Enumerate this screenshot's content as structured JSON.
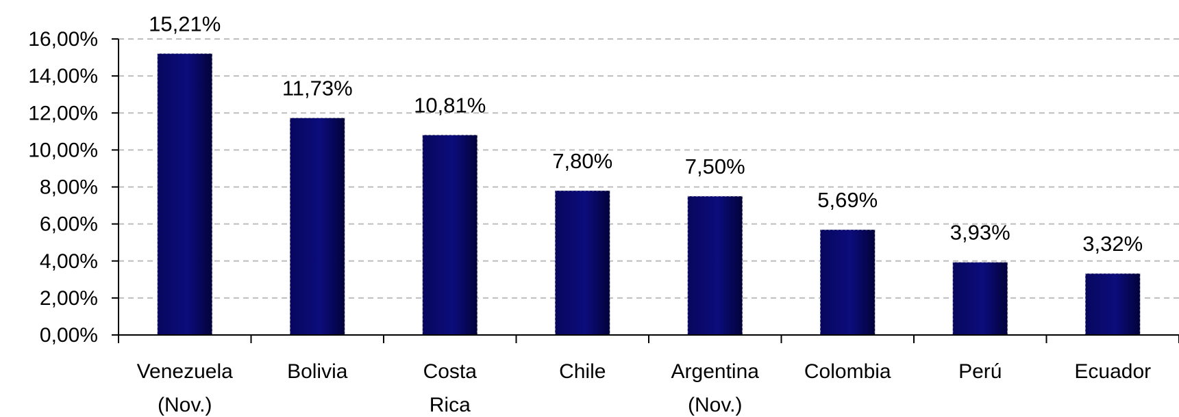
{
  "chart_data": {
    "type": "bar",
    "categories": [
      [
        "Venezuela",
        "(Nov.)"
      ],
      [
        "Bolivia"
      ],
      [
        "Costa",
        "Rica"
      ],
      [
        "Chile"
      ],
      [
        "Argentina",
        "(Nov.)"
      ],
      [
        "Colombia"
      ],
      [
        "Perú"
      ],
      [
        "Ecuador"
      ]
    ],
    "values": [
      15.21,
      11.73,
      10.81,
      7.8,
      7.5,
      5.69,
      3.93,
      3.32
    ],
    "data_labels": [
      "15,21%",
      "11,73%",
      "10,81%",
      "7,80%",
      "7,50%",
      "5,69%",
      "3,93%",
      "3,32%"
    ],
    "ylim": [
      0,
      16
    ],
    "yticks": [
      0,
      2,
      4,
      6,
      8,
      10,
      12,
      14,
      16
    ],
    "ytick_labels": [
      "0,00%",
      "2,00%",
      "4,00%",
      "6,00%",
      "8,00%",
      "10,00%",
      "12,00%",
      "14,00%",
      "16,00%"
    ],
    "grid": true,
    "legend": "none",
    "colors": {
      "bar_dark": "#03034a",
      "bar_mid": "#0b0b78",
      "grid": "#bdbdbd",
      "axis": "#000000"
    }
  }
}
